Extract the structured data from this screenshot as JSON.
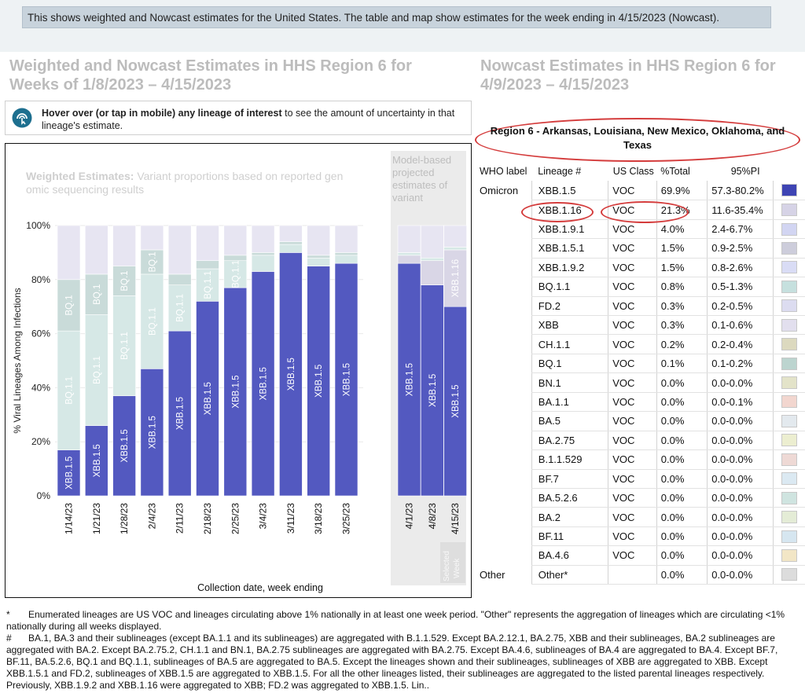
{
  "top_message": "This shows weighted and Nowcast estimates for the United States. The table and map show estimates for the week ending in 4/15/2023 (Nowcast).",
  "left_heading": "Weighted and Nowcast Estimates in HHS Region 6 for Weeks of 1/8/2023 – 4/15/2023",
  "right_heading": "Nowcast Estimates in HHS Region 6 for 4/9/2023 – 4/15/2023",
  "hover_note": {
    "bold": "Hover over (or tap in mobile) any lineage of interest",
    "rest": " to see the amount of uncertainty in that lineage's estimate."
  },
  "chart_data": {
    "type": "bar",
    "stacked": true,
    "weighted_label": "Weighted Estimates:",
    "weighted_desc": " Variant proportions based on reported genomic sequencing results",
    "nowcast_label": "Model-based projected estimates of variant",
    "selected_week_label": "Selected Week",
    "ylabel": "% Viral Lineages Among Infections",
    "xlabel": "Collection date, week ending",
    "yticks": [
      "0%",
      "20%",
      "40%",
      "60%",
      "80%",
      "100%"
    ],
    "ylim": [
      0,
      100
    ],
    "weighted_categories": [
      "1/14/23",
      "1/21/23",
      "1/28/23",
      "2/4/23",
      "2/11/23",
      "2/18/23",
      "2/25/23",
      "3/4/23",
      "3/11/23",
      "3/18/23",
      "3/25/23"
    ],
    "nowcast_categories": [
      "4/1/23",
      "4/8/23",
      "4/15/23"
    ],
    "series": [
      {
        "name": "XBB.1.5",
        "color": "#5359c0",
        "weighted": [
          17,
          26,
          37,
          47,
          61,
          72,
          77,
          83,
          90,
          85,
          86
        ],
        "nowcast": [
          86,
          78,
          70
        ]
      },
      {
        "name": "XBB.1.16",
        "color": "#d9d6e6",
        "weighted": [
          0,
          0,
          0,
          0,
          0,
          0,
          0,
          0,
          0,
          0,
          0
        ],
        "nowcast": [
          3,
          9,
          21
        ]
      },
      {
        "name": "BQ.1.1",
        "color": "#d6e8e6",
        "weighted": [
          44,
          41,
          37,
          35,
          17,
          12,
          10,
          6,
          3,
          3,
          3
        ],
        "nowcast": [
          1,
          1,
          1
        ]
      },
      {
        "name": "BQ.1",
        "color": "#c9dbd9",
        "weighted": [
          19,
          15,
          11,
          9,
          4,
          3,
          2,
          1,
          1,
          1,
          1
        ],
        "nowcast": [
          0,
          0,
          0
        ]
      },
      {
        "name": "Other lineages",
        "color": "#e7e5f2",
        "weighted": [
          20,
          18,
          15,
          9,
          18,
          13,
          11,
          10,
          6,
          11,
          10
        ],
        "nowcast": [
          10,
          12,
          8
        ]
      }
    ],
    "bar_labels": {
      "weighted": [
        [
          "XBB.1.5",
          "BQ.1.1",
          "BQ.1"
        ],
        [
          "XBB.1.5",
          "BQ.1.1",
          "BQ.1"
        ],
        [
          "XBB.1.5",
          "BQ.1.1",
          "BQ.1"
        ],
        [
          "XBB.1.5",
          "BQ.1.1",
          "BQ.1"
        ],
        [
          "XBB.1.5",
          "BQ.1.1"
        ],
        [
          "XBB.1.5",
          "BQ.1.1"
        ],
        [
          "XBB.1.5",
          "BQ.1.1"
        ],
        [
          "XBB.1.5"
        ],
        [
          "XBB.1.5"
        ],
        [
          "XBB.1.5"
        ],
        [
          "XBB.1.5"
        ]
      ],
      "nowcast": [
        [
          "XBB.1.5"
        ],
        [
          "XBB.1.5"
        ],
        [
          "XBB.1.5",
          "XBB.1.16"
        ]
      ]
    }
  },
  "region_title": "Region 6 - Arkansas, Louisiana, New Mexico, Oklahoma, and Texas",
  "table": {
    "headers": [
      "WHO label",
      "Lineage #",
      "US Class",
      "%Total",
      "95%PI"
    ],
    "rows": [
      {
        "who": "Omicron",
        "lineage": "XBB.1.5",
        "cls": "VOC",
        "pct": "69.9%",
        "pi": "57.3-80.2%",
        "color": "#3e44b3"
      },
      {
        "who": "",
        "lineage": "XBB.1.16",
        "cls": "VOC",
        "pct": "21.3%",
        "pi": "11.6-35.4%",
        "color": "#d6d3e6"
      },
      {
        "who": "",
        "lineage": "XBB.1.9.1",
        "cls": "VOC",
        "pct": "4.0%",
        "pi": "2.4-6.7%",
        "color": "#d2d5f2"
      },
      {
        "who": "",
        "lineage": "XBB.1.5.1",
        "cls": "VOC",
        "pct": "1.5%",
        "pi": "0.9-2.5%",
        "color": "#cdcddb"
      },
      {
        "who": "",
        "lineage": "XBB.1.9.2",
        "cls": "VOC",
        "pct": "1.5%",
        "pi": "0.8-2.6%",
        "color": "#d9dcf5"
      },
      {
        "who": "",
        "lineage": "BQ.1.1",
        "cls": "VOC",
        "pct": "0.8%",
        "pi": "0.5-1.3%",
        "color": "#c6e0de"
      },
      {
        "who": "",
        "lineage": "FD.2",
        "cls": "VOC",
        "pct": "0.3%",
        "pi": "0.2-0.5%",
        "color": "#dcdcf0"
      },
      {
        "who": "",
        "lineage": "XBB",
        "cls": "VOC",
        "pct": "0.3%",
        "pi": "0.1-0.6%",
        "color": "#e2dfee"
      },
      {
        "who": "",
        "lineage": "CH.1.1",
        "cls": "VOC",
        "pct": "0.2%",
        "pi": "0.2-0.4%",
        "color": "#dcd9bf"
      },
      {
        "who": "",
        "lineage": "BQ.1",
        "cls": "VOC",
        "pct": "0.1%",
        "pi": "0.1-0.2%",
        "color": "#bcd4cf"
      },
      {
        "who": "",
        "lineage": "BN.1",
        "cls": "VOC",
        "pct": "0.0%",
        "pi": "0.0-0.0%",
        "color": "#e3e3c9"
      },
      {
        "who": "",
        "lineage": "BA.1.1",
        "cls": "VOC",
        "pct": "0.0%",
        "pi": "0.0-0.1%",
        "color": "#f2d6cf"
      },
      {
        "who": "",
        "lineage": "BA.5",
        "cls": "VOC",
        "pct": "0.0%",
        "pi": "0.0-0.0%",
        "color": "#e3e9ee"
      },
      {
        "who": "",
        "lineage": "BA.2.75",
        "cls": "VOC",
        "pct": "0.0%",
        "pi": "0.0-0.0%",
        "color": "#eceed0"
      },
      {
        "who": "",
        "lineage": "B.1.1.529",
        "cls": "VOC",
        "pct": "0.0%",
        "pi": "0.0-0.0%",
        "color": "#eed9d5"
      },
      {
        "who": "",
        "lineage": "BF.7",
        "cls": "VOC",
        "pct": "0.0%",
        "pi": "0.0-0.0%",
        "color": "#dbe9f2"
      },
      {
        "who": "",
        "lineage": "BA.5.2.6",
        "cls": "VOC",
        "pct": "0.0%",
        "pi": "0.0-0.0%",
        "color": "#cfe4e0"
      },
      {
        "who": "",
        "lineage": "BA.2",
        "cls": "VOC",
        "pct": "0.0%",
        "pi": "0.0-0.0%",
        "color": "#e4ecd6"
      },
      {
        "who": "",
        "lineage": "BF.11",
        "cls": "VOC",
        "pct": "0.0%",
        "pi": "0.0-0.0%",
        "color": "#d6e6f0"
      },
      {
        "who": "",
        "lineage": "BA.4.6",
        "cls": "VOC",
        "pct": "0.0%",
        "pi": "0.0-0.0%",
        "color": "#f2e6c6"
      },
      {
        "who": "Other",
        "lineage": "Other*",
        "cls": "",
        "pct": "0.0%",
        "pi": "0.0-0.0%",
        "color": "#dcdcdc"
      }
    ]
  },
  "footnotes": [
    {
      "mark": "*",
      "text": "Enumerated lineages are US VOC and lineages circulating above 1% nationally in at least one week period. \"Other\" represents the aggregation of lineages which are circulating <1% nationally during all weeks displayed."
    },
    {
      "mark": "#",
      "text": "BA.1, BA.3 and their sublineages (except BA.1.1 and its sublineages) are aggregated with B.1.1.529. Except BA.2.12.1, BA.2.75, XBB and their sublineages, BA.2 sublineages are aggregated with BA.2. Except BA.2.75.2, CH.1.1 and BN.1, BA.2.75 sublineages are aggregated with BA.2.75. Except BA.4.6, sublineages of BA.4 are aggregated to BA.4. Except BF.7, BF.11, BA.5.2.6, BQ.1 and BQ.1.1, sublineages of BA.5 are aggregated to BA.5. Except the lineages shown and their sublineages, sublineages of XBB are aggregated to XBB. Except XBB.1.5.1 and FD.2, sublineages of XBB.1.5 are aggregated to XBB.1.5. For all the other lineages listed, their sublineages are aggregated to the listed parental lineages respectively. Previously, XBB.1.9.2 and XBB.1.16 were aggregated to XBB; FD.2 was aggregated to XBB.1.5. Lin.."
    }
  ]
}
